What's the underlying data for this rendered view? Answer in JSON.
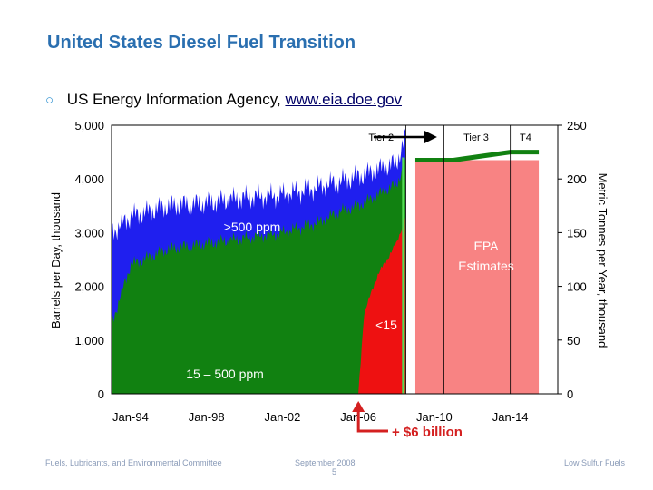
{
  "slide": {
    "title": "United States Diesel Fuel Transition",
    "bullet_prefix": "US Energy Information Agency,",
    "bullet_link": "www.eia.doe.gov"
  },
  "footer": {
    "left": "Fuels, Lubricants, and Environmental Committee",
    "center": "September 2008",
    "page": "5",
    "right": "Low Sulfur Fuels"
  },
  "colors": {
    "high_sulfur": "#1f1fef",
    "mid_sulfur": "#118111",
    "ulsd": "#ee1111",
    "estimate": "#f88383",
    "arrow": "#d42020",
    "light_green": "#55dd55",
    "title": "#2a6fb0"
  },
  "chart_data": {
    "type": "area",
    "title": "",
    "xlabel": "",
    "ylabel": "Barrels per Day, thousand",
    "y2label": "Metric Tonnes per Year, thousand",
    "x_ticks": [
      "Jan-94",
      "Jan-98",
      "Jan-02",
      "Jan-06",
      "Jan-10",
      "Jan-14"
    ],
    "x_tick_years": [
      1994,
      1998,
      2002,
      2006,
      2010,
      2014
    ],
    "xlim": [
      1993,
      2016.5
    ],
    "ylim": [
      0,
      5000
    ],
    "y_ticks": [
      "0",
      "1,000",
      "2,000",
      "3,000",
      "4,000",
      "5,000"
    ],
    "y_tick_values": [
      0,
      1000,
      2000,
      3000,
      4000,
      5000
    ],
    "y2lim": [
      0,
      250
    ],
    "y2_ticks": [
      "0",
      "50",
      "100",
      "150",
      "200",
      "250"
    ],
    "y2_tick_values": [
      0,
      50,
      100,
      150,
      200,
      250
    ],
    "series": [
      {
        "name": ">500 ppm",
        "x": [
          1993.0,
          1994.0,
          1996.0,
          1998.0,
          2000.0,
          2002.0,
          2004.0,
          2005.5,
          2006.5,
          2008.0,
          2008.5
        ],
        "values": [
          3000,
          3300,
          3500,
          3550,
          3650,
          3700,
          3850,
          4000,
          4100,
          4300,
          4800
        ]
      },
      {
        "name": "15 – 500 ppm",
        "x": [
          1993.0,
          1994.0,
          1996.0,
          1998.0,
          2000.0,
          2002.0,
          2004.0,
          2005.0,
          2006.0,
          2007.0,
          2008.0,
          2008.5
        ],
        "values": [
          1300,
          2400,
          2700,
          2800,
          2900,
          3000,
          3200,
          3400,
          3500,
          3700,
          3900,
          4300
        ]
      },
      {
        "name": "<15",
        "x": [
          2006.0,
          2006.3,
          2007.0,
          2007.5,
          2008.0,
          2008.5
        ],
        "values": [
          0,
          1500,
          2200,
          2500,
          2800,
          3300
        ]
      },
      {
        "name": "EPA Estimates",
        "x": [
          2009.0,
          2011.0,
          2012.0,
          2014.0,
          2015.5
        ],
        "values": [
          4350,
          4350,
          4400,
          4500,
          4500
        ]
      }
    ],
    "phases": [
      {
        "label": "Tier 2",
        "start": 2007.5,
        "end": 2009.5
      },
      {
        "label": "Tier 3",
        "start": 2010.5,
        "end": 2014.0
      },
      {
        "label": "T4",
        "start": 2014.0,
        "end": 2015.5
      }
    ],
    "annotations": {
      "high": ">500 ppm",
      "mid": "15 – 500 ppm",
      "ulsd": "<15",
      "estimate": "EPA Estimates",
      "cost": "+ $6 billion"
    }
  }
}
